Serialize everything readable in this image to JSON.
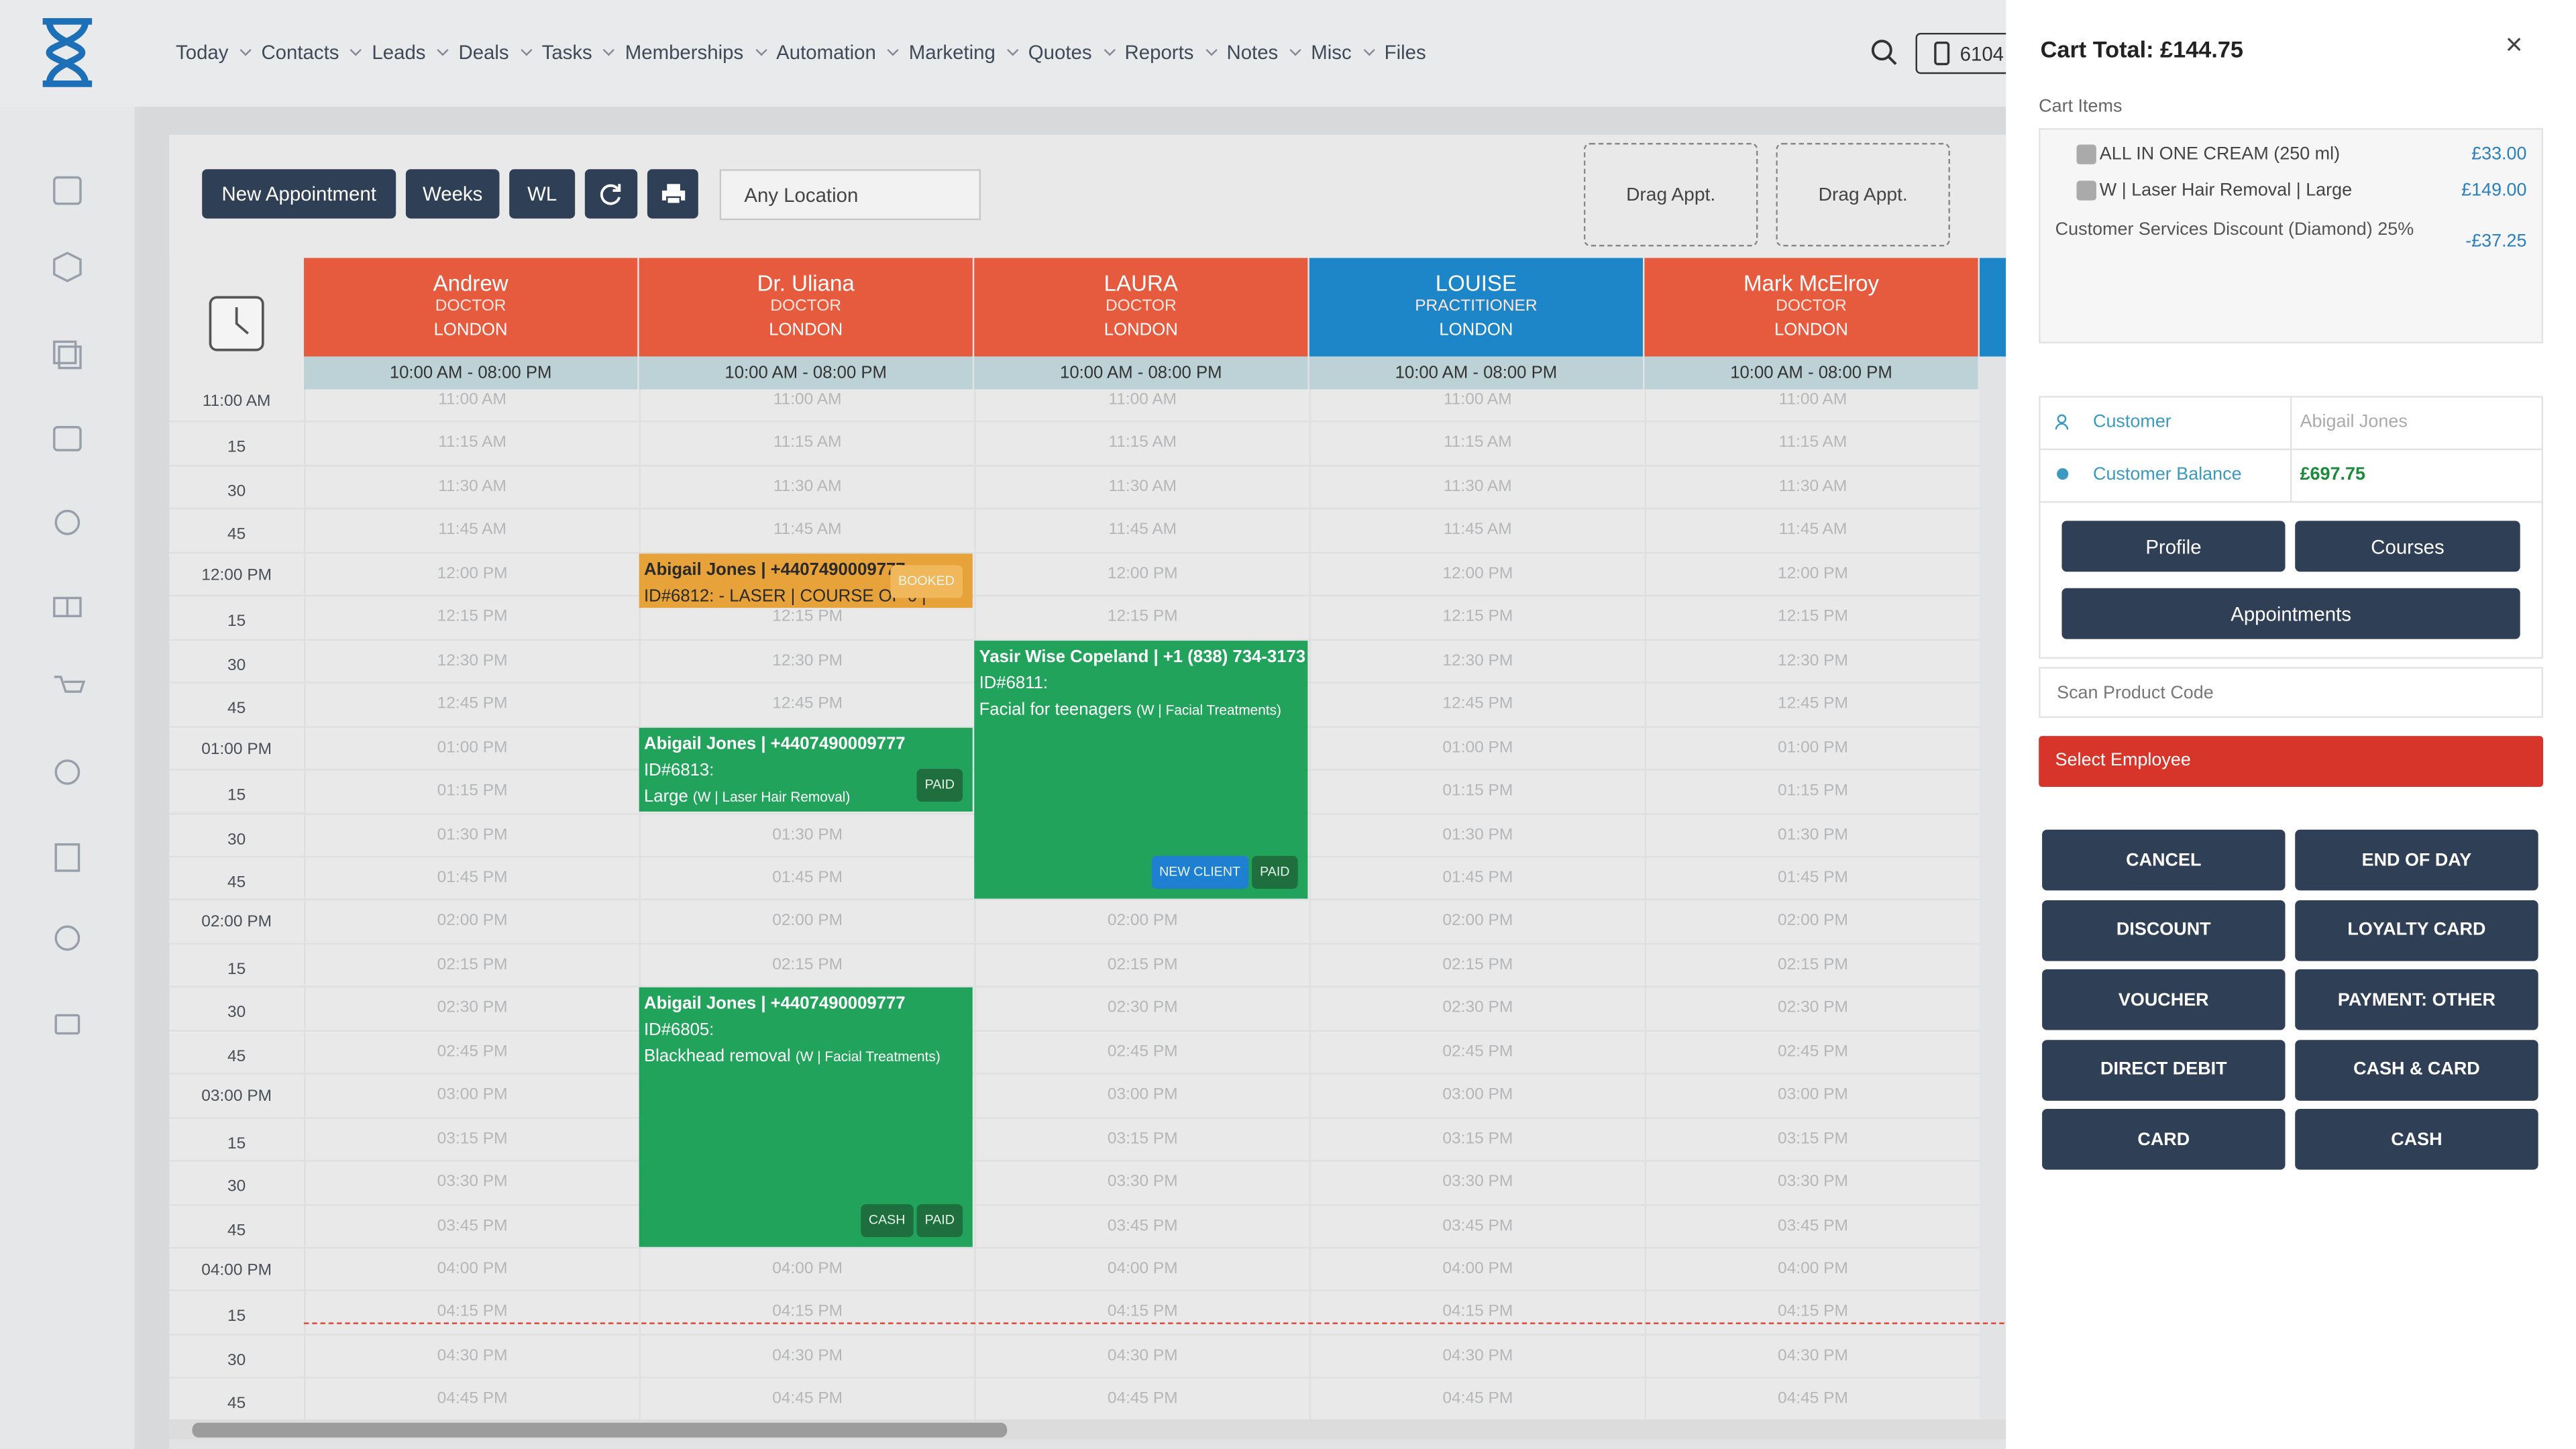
{
  "nav": {
    "items": [
      "Today",
      "Contacts",
      "Leads",
      "Deals",
      "Tasks",
      "Memberships",
      "Automation",
      "Marketing",
      "Quotes",
      "Reports",
      "Notes",
      "Misc",
      "Files"
    ],
    "phone": "6104"
  },
  "toolbar": {
    "buttons": [
      "New Appointment",
      "Weeks",
      "WL"
    ],
    "location": "Any Location",
    "drag_slots": [
      "Drag Appt.",
      "Drag Appt."
    ]
  },
  "calendar": {
    "staff": [
      {
        "name": "Andrew",
        "role": "DOCTOR",
        "location": "LONDON",
        "hours": "10:00 AM - 08:00 PM"
      },
      {
        "name": "Dr. Uliana",
        "role": "DOCTOR",
        "location": "LONDON",
        "hours": "10:00 AM - 08:00 PM"
      },
      {
        "name": "LAURA",
        "role": "DOCTOR",
        "location": "LONDON",
        "hours": "10:00 AM - 08:00 PM"
      },
      {
        "name": "LOUISE",
        "role": "PRACTITIONER",
        "location": "LONDON",
        "hours": "10:00 AM - 08:00 PM"
      },
      {
        "name": "Mark McElroy",
        "role": "DOCTOR",
        "location": "LONDON",
        "hours": "10:00 AM - 08:00 PM"
      }
    ],
    "time_axis": [
      "11:00 AM",
      "15",
      "30",
      "45",
      "12:00 PM",
      "15",
      "30",
      "45",
      "01:00 PM",
      "15",
      "30",
      "45",
      "02:00 PM",
      "15",
      "30",
      "45",
      "03:00 PM",
      "15",
      "30",
      "45",
      "04:00 PM",
      "15",
      "30",
      "45"
    ],
    "slots": [
      "11:00 AM",
      "11:15 AM",
      "11:30 AM",
      "11:45 AM",
      "12:00 PM",
      "12:15 PM",
      "12:30 PM",
      "12:45 PM",
      "01:00 PM",
      "01:15 PM",
      "01:30 PM",
      "01:45 PM",
      "02:00 PM",
      "02:15 PM",
      "02:30 PM",
      "02:45 PM",
      "03:00 PM",
      "03:15 PM",
      "03:30 PM",
      "03:45 PM",
      "04:00 PM",
      "04:15 PM",
      "04:30 PM",
      "04:45 PM"
    ],
    "appointments": [
      {
        "title": "Abigail Jones | +4407490009777",
        "lines": [
          {
            "text": "ID#6812: - LASER | COURSE OF 6 |"
          }
        ],
        "badges": [
          "BOOKED"
        ]
      },
      {
        "title": "Abigail Jones | +4407490009777",
        "lines": [
          {
            "text": "ID#6813:"
          },
          {
            "text": "Large",
            "note": "(W | Laser Hair Removal)"
          }
        ],
        "badges": [
          "PAID"
        ]
      },
      {
        "title": "Yasir Wise Copeland | +1 (838) 734-3173",
        "lines": [
          {
            "text": "ID#6811:"
          },
          {
            "text": "Facial for teenagers",
            "note": "(W | Facial Treatments)"
          }
        ],
        "badges": [
          "NEW CLIENT",
          "PAID"
        ]
      },
      {
        "title": "Abigail Jones | +4407490009777",
        "lines": [
          {
            "text": "ID#6805:"
          },
          {
            "text": "Blackhead removal",
            "note": "(W | Facial Treatments)"
          }
        ],
        "badges": [
          "CASH",
          "PAID"
        ]
      }
    ]
  },
  "cart": {
    "title": "Cart Total: £144.75",
    "items_label": "Cart Items",
    "items": [
      {
        "name": "ALL IN ONE CREAM (250 ml)",
        "price": "£33.00"
      },
      {
        "name": "W | Laser Hair Removal | Large",
        "price": "£149.00"
      }
    ],
    "discount": {
      "name": "Customer Services Discount (Diamond) 25%",
      "amount": "-£37.25"
    },
    "customer": {
      "label": "Customer",
      "value": "Abigail Jones",
      "balance_label": "Customer Balance",
      "balance": "£697.75"
    },
    "buttons": [
      "Profile",
      "Courses",
      "Appointments"
    ],
    "scan_placeholder": "Scan Product Code",
    "employee": "Select Employee",
    "payments": [
      "CANCEL",
      "END OF DAY",
      "DISCOUNT",
      "LOYALTY CARD",
      "VOUCHER",
      "PAYMENT: OTHER",
      "DIRECT DEBIT",
      "CASH & CARD",
      "CARD",
      "CASH"
    ]
  }
}
